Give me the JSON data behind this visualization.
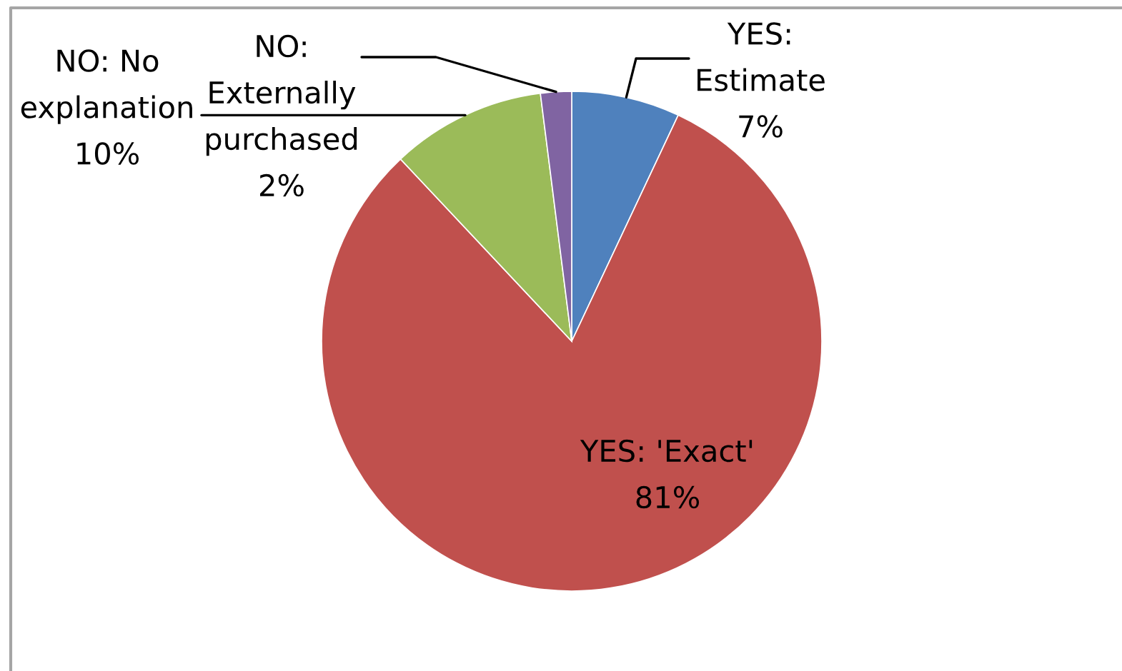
{
  "chart_data": {
    "type": "pie",
    "categories": [
      "YES: Estimate",
      "YES: 'Exact'",
      "NO: No explanation",
      "NO: Externally purchased"
    ],
    "values": [
      7,
      81,
      10,
      2
    ],
    "colors": [
      "#4f81bd",
      "#c0504d",
      "#9bbb59",
      "#8064a2"
    ],
    "value_labels": [
      "7%",
      "81%",
      "10%",
      "2%"
    ]
  }
}
